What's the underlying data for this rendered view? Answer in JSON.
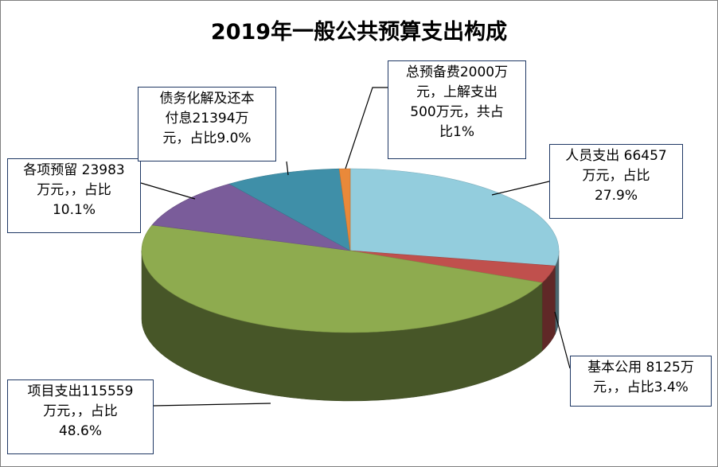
{
  "chart_data": {
    "type": "pie",
    "title": "2019年一般公共预算支出构成",
    "slices": [
      {
        "name": "人员支出",
        "value": 66457,
        "percent": 27.9,
        "color": "#93cddd",
        "label": "人员支出 66457\n万元，占比\n27.9%"
      },
      {
        "name": "基本公用",
        "value": 8125,
        "percent": 3.4,
        "color": "#c0504d",
        "label": "基本公用 8125万\n元，，占比3.4%"
      },
      {
        "name": "项目支出",
        "value": 115559,
        "percent": 48.6,
        "color": "#8eab4f",
        "label": "项目支出115559\n万元，，占比\n48.6%"
      },
      {
        "name": "各项预留",
        "value": 23983,
        "percent": 10.1,
        "color": "#7a5c9a",
        "label": "各项预留 23983\n万元，，占比\n10.1%"
      },
      {
        "name": "债务化解及还本付息",
        "value": 21394,
        "percent": 9.0,
        "color": "#3f8fa8",
        "label": "债务化解及还本\n付息21394万\n元，占比9.0%"
      },
      {
        "name": "总预备费",
        "value": 2000,
        "percent": 1,
        "color": "#e9893a",
        "label": "总预备费2000万\n元，上解支出\n500万元，共占\n比1%"
      }
    ]
  }
}
